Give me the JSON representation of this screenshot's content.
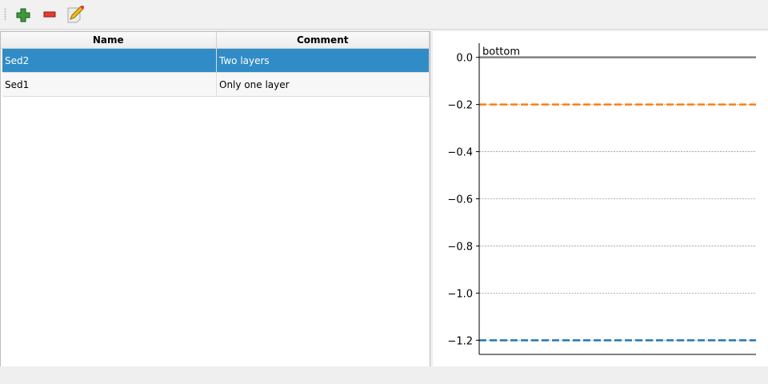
{
  "toolbar": {
    "items": [
      {
        "name": "add",
        "icon": "plus-icon"
      },
      {
        "name": "remove",
        "icon": "minus-icon"
      },
      {
        "name": "edit",
        "icon": "edit-icon"
      }
    ]
  },
  "table": {
    "columns": [
      "Name",
      "Comment"
    ],
    "rows": [
      {
        "name": "Sed2",
        "comment": "Two layers",
        "selected": true
      },
      {
        "name": "Sed1",
        "comment": "Only one layer",
        "selected": false
      }
    ]
  },
  "chart_data": {
    "type": "line",
    "ylim": [
      -1.26,
      0.06
    ],
    "yticks": [
      0.0,
      -0.2,
      -0.4,
      -0.6,
      -0.8,
      -1.0,
      -1.2
    ],
    "ytick_labels": [
      "0.0",
      "−0.2",
      "−0.4",
      "−0.6",
      "−0.8",
      "−1.0",
      "−1.2"
    ],
    "grid": true,
    "lines": [
      {
        "y": 0.0,
        "color": "#808080",
        "style": "solid",
        "label": "bottom"
      },
      {
        "y": -0.2,
        "color": "#ff7f0e",
        "style": "dashed"
      },
      {
        "y": -1.2,
        "color": "#1f77b4",
        "style": "dashed"
      }
    ]
  },
  "colors": {
    "selection": "#308cc6"
  }
}
